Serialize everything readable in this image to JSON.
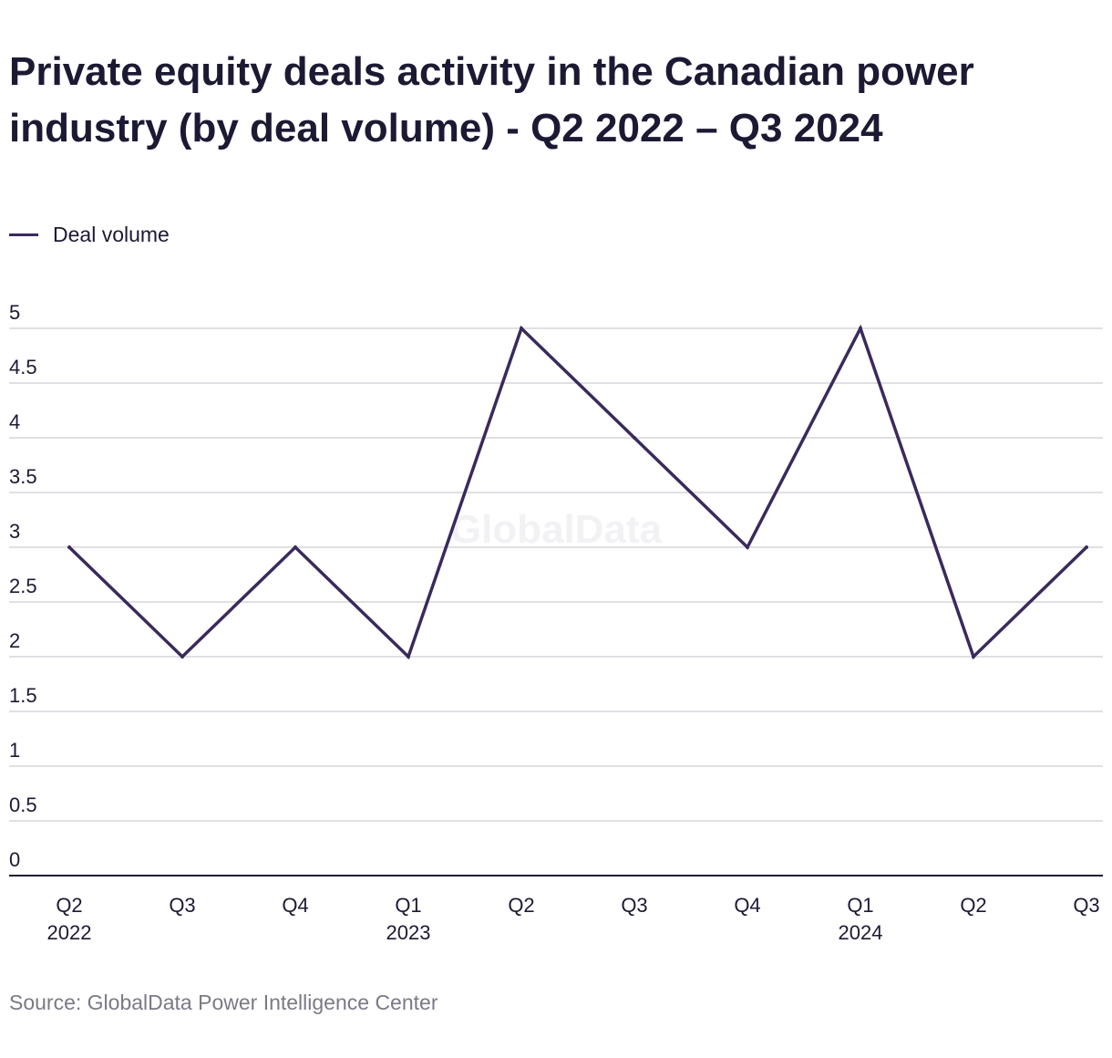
{
  "title": "Private equity deals activity in the Canadian power industry (by deal volume) - Q2 2022 – Q3 2024",
  "source": "Source: GlobalData Power Intelligence Center",
  "watermark": "GlobalData",
  "colors": {
    "line": "#3a2a5c",
    "grid": "#d6d6dc",
    "axis": "#1c1a33",
    "text": "#1c1a33",
    "muted": "#7a7a86"
  },
  "chart_data": {
    "type": "line",
    "categories": [
      "Q2 2022",
      "Q3",
      "Q4",
      "Q1 2023",
      "Q2",
      "Q3",
      "Q4",
      "Q1 2024",
      "Q2",
      "Q3"
    ],
    "x_tick_labels": [
      [
        "Q2",
        "2022"
      ],
      [
        "Q3"
      ],
      [
        "Q4"
      ],
      [
        "Q1",
        "2023"
      ],
      [
        "Q2"
      ],
      [
        "Q3"
      ],
      [
        "Q4"
      ],
      [
        "Q1",
        "2024"
      ],
      [
        "Q2"
      ],
      [
        "Q3"
      ]
    ],
    "series": [
      {
        "name": "Deal volume",
        "values": [
          3,
          2,
          3,
          2,
          5,
          4,
          3,
          5,
          2,
          3
        ]
      }
    ],
    "y_ticks": [
      "0",
      "0.5",
      "1",
      "1.5",
      "2",
      "2.5",
      "3",
      "3.5",
      "4",
      "4.5",
      "5"
    ],
    "ylim": [
      0,
      5
    ],
    "xlabel": "",
    "ylabel": "",
    "grid": true,
    "legend": "top-left"
  }
}
